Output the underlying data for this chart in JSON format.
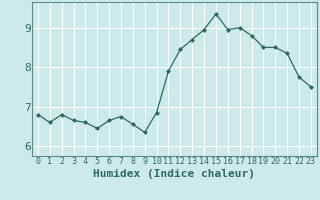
{
  "x": [
    0,
    1,
    2,
    3,
    4,
    5,
    6,
    7,
    8,
    9,
    10,
    11,
    12,
    13,
    14,
    15,
    16,
    17,
    18,
    19,
    20,
    21,
    22,
    23
  ],
  "y": [
    6.8,
    6.6,
    6.8,
    6.65,
    6.6,
    6.45,
    6.65,
    6.75,
    6.55,
    6.35,
    6.85,
    7.9,
    8.45,
    8.7,
    8.95,
    9.35,
    8.95,
    9.0,
    8.8,
    8.5,
    8.5,
    8.35,
    7.75,
    7.5
  ],
  "xlabel": "Humidex (Indice chaleur)",
  "xlim": [
    -0.5,
    23.5
  ],
  "ylim": [
    5.75,
    9.65
  ],
  "yticks": [
    6,
    7,
    8,
    9
  ],
  "xticks": [
    0,
    1,
    2,
    3,
    4,
    5,
    6,
    7,
    8,
    9,
    10,
    11,
    12,
    13,
    14,
    15,
    16,
    17,
    18,
    19,
    20,
    21,
    22,
    23
  ],
  "line_color": "#2e6b5e",
  "marker": "D",
  "marker_size": 2,
  "bg_color": "#cceaea",
  "grid_color": "#ffffff",
  "axes_edge_color": "#5a8a80",
  "tick_color": "#2e6b5e",
  "xlabel_color": "#2e6b5e",
  "xtick_fontsize": 6,
  "ytick_fontsize": 8,
  "xlabel_fontsize": 8
}
